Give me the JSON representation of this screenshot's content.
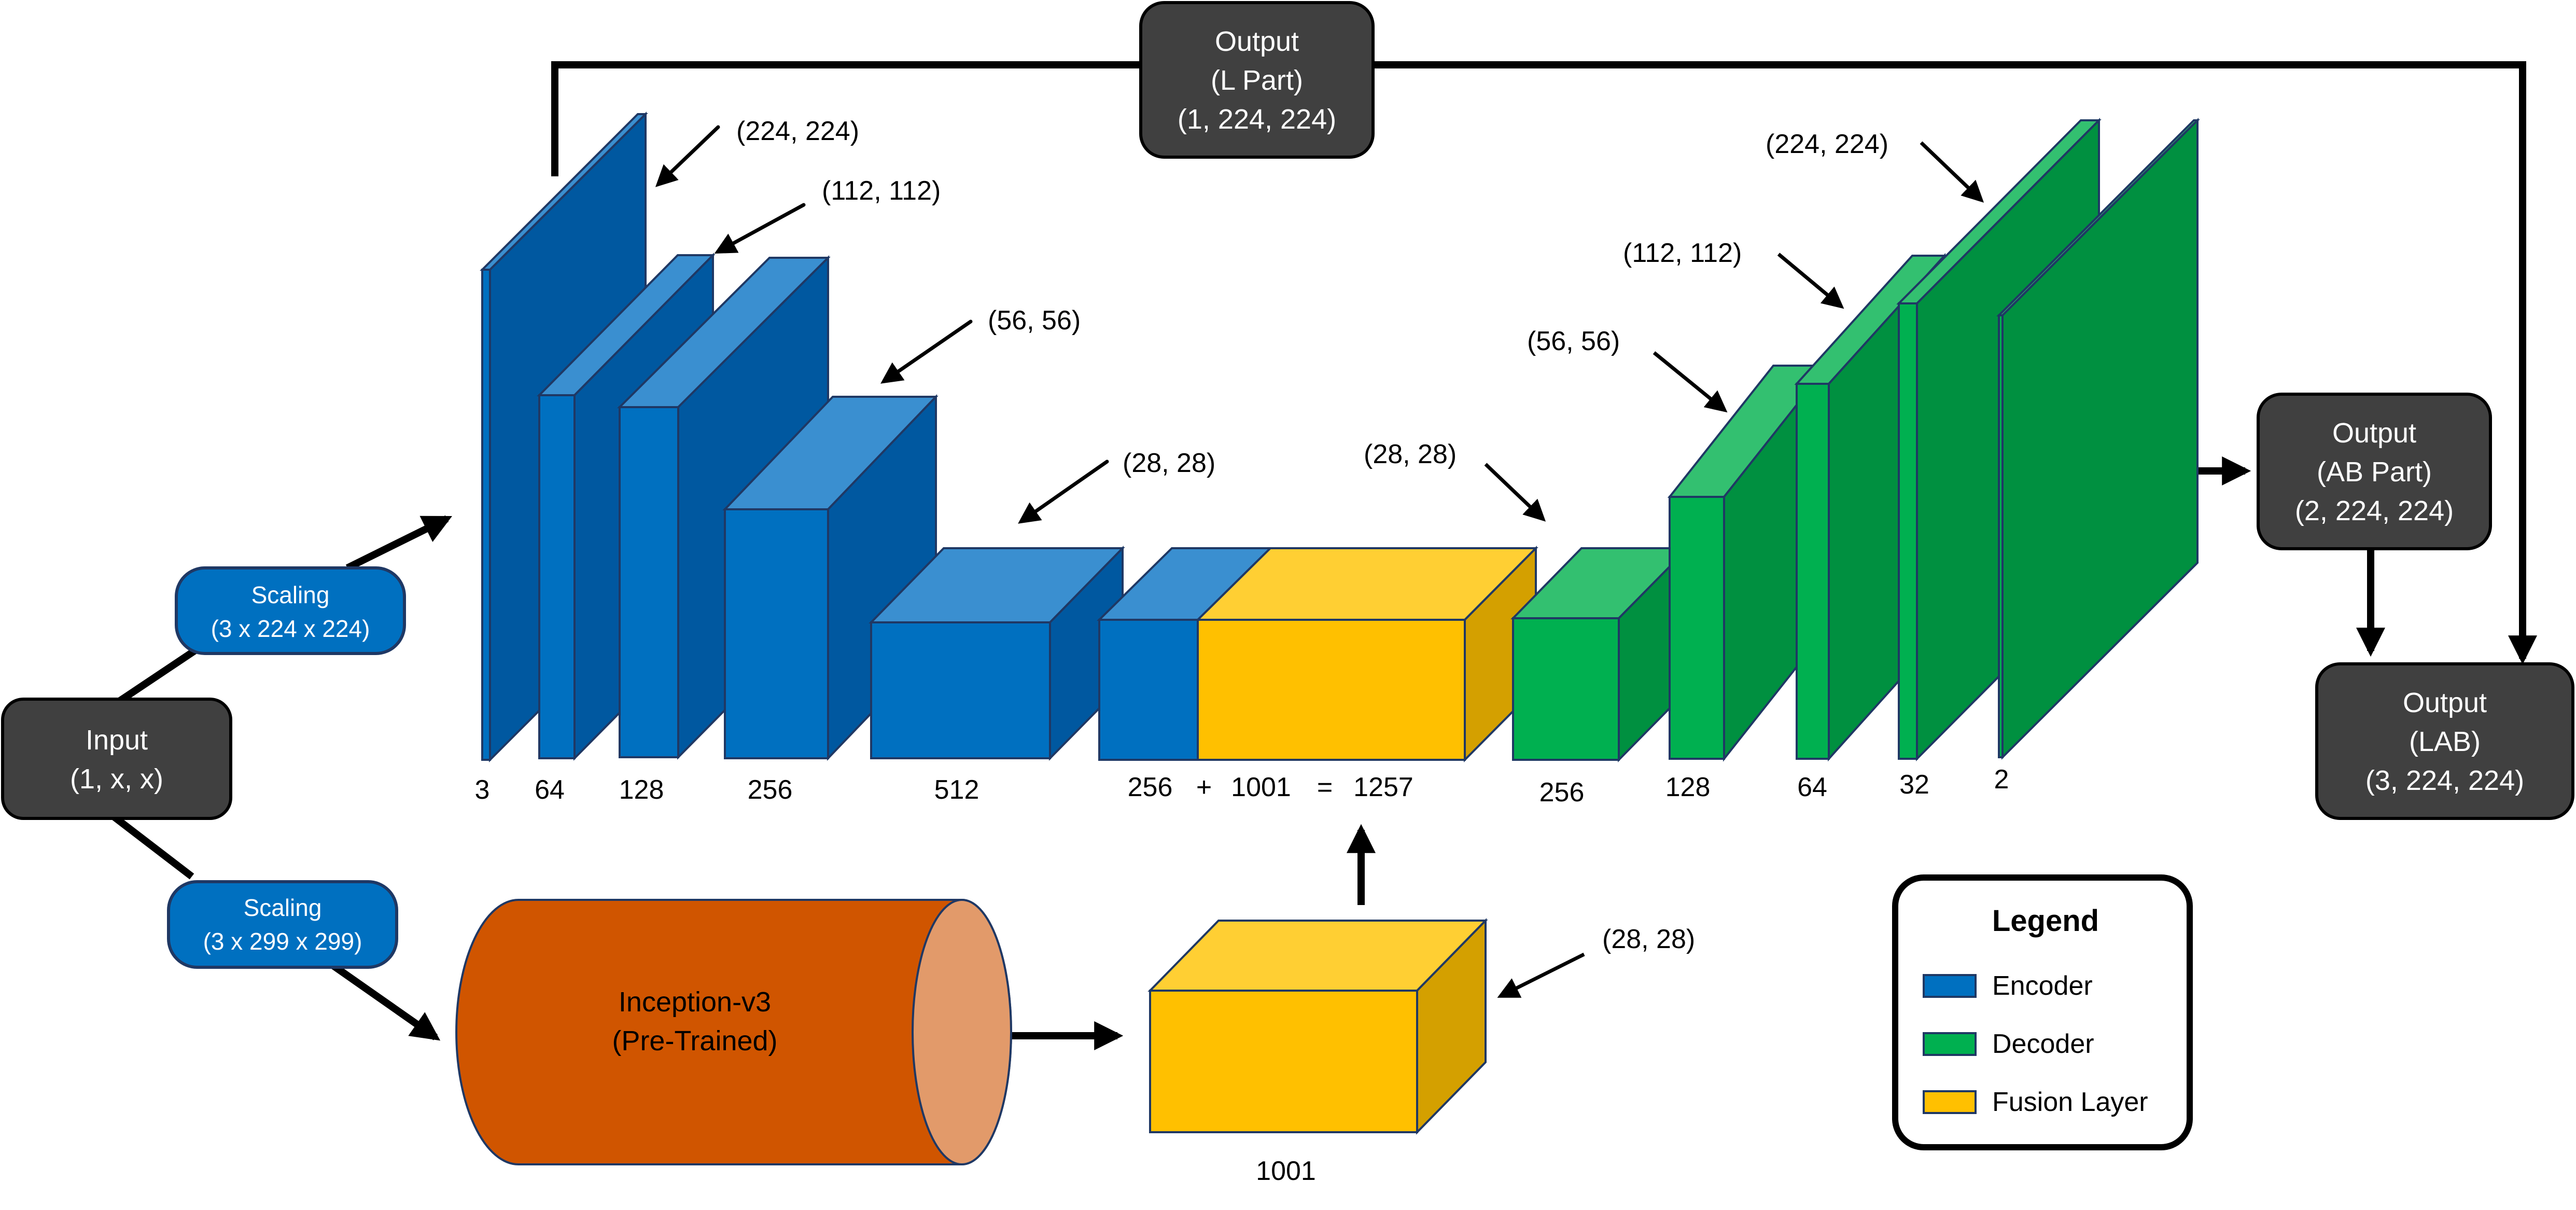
{
  "input_box": {
    "title": "Input",
    "dims": "(1, x, x)"
  },
  "scaling_top": {
    "title": "Scaling",
    "dims": "(3 x 224 x 224)"
  },
  "scaling_bottom": {
    "title": "Scaling",
    "dims": "(3 x 299 x 299)"
  },
  "inception": {
    "title": "Inception-v3",
    "subtitle": "(Pre-Trained)"
  },
  "output_l": {
    "title": "Output",
    "part": "(L Part)",
    "dims": "(1, 224, 224)"
  },
  "output_ab": {
    "title": "Output",
    "part": "(AB Part)",
    "dims": "(2, 224, 224)"
  },
  "output_lab": {
    "title": "Output",
    "part": "(LAB)",
    "dims": "(3, 224, 224)"
  },
  "encoder": {
    "channels": [
      "3",
      "64",
      "128",
      "256",
      "512"
    ],
    "sizes": [
      "(224, 224)",
      "(112, 112)",
      "(56, 56)",
      "(28, 28)"
    ]
  },
  "fusion": {
    "equation": [
      "256",
      "+",
      "1001",
      "=",
      "1257"
    ],
    "size": "(28, 28)",
    "standalone_channels": "1001"
  },
  "decoder": {
    "channels": [
      "256",
      "128",
      "64",
      "32",
      "2"
    ],
    "sizes": [
      "(28, 28)",
      "(56, 56)",
      "(112, 112)",
      "(224, 224)"
    ]
  },
  "legend": {
    "title": "Legend",
    "items": [
      {
        "label": "Encoder",
        "color": "#0070C0"
      },
      {
        "label": "Decoder",
        "color": "#00B050"
      },
      {
        "label": "Fusion Layer",
        "color": "#FFC000"
      }
    ]
  },
  "colors": {
    "encoder_front": "#0070C0",
    "encoder_top": "#3A8FD0",
    "encoder_side": "#0058A0",
    "decoder_front": "#00B050",
    "decoder_top": "#33C070",
    "decoder_side": "#009040",
    "fusion_front": "#FFC000",
    "fusion_top": "#FFCF33",
    "fusion_side": "#D4A000",
    "inception_body": "#D05500",
    "inception_end": "#E29A6A",
    "dark_box": "#404040",
    "scaling_box": "#0070C0"
  }
}
